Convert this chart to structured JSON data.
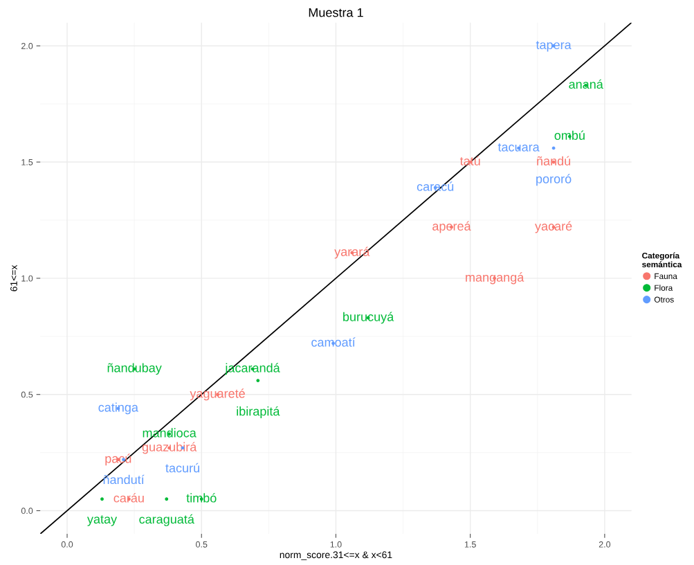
{
  "chart_data": {
    "type": "scatter",
    "title": "Muestra 1",
    "xlabel": "norm_score.31<=x & x<61",
    "ylabel": "61<=x",
    "legend_title": "Categoría\nsemántica",
    "legend": "right",
    "grid": true,
    "marker": "circle",
    "xlim": [
      -0.1,
      2.1
    ],
    "ylim": [
      -0.1,
      2.1
    ],
    "xticks": [
      {
        "value": 0,
        "label": "0.0"
      },
      {
        "value": 0.5,
        "label": "0.5"
      },
      {
        "value": 1,
        "label": "1.0"
      },
      {
        "value": 1.5,
        "label": "1.5"
      },
      {
        "value": 2,
        "label": "2.0"
      }
    ],
    "yticks": [
      {
        "value": 0,
        "label": "0.0"
      },
      {
        "value": 0.5,
        "label": "0.5"
      },
      {
        "value": 1,
        "label": "1.0"
      },
      {
        "value": 1.5,
        "label": "1.5"
      },
      {
        "value": 2,
        "label": "2.0"
      }
    ],
    "series": [
      {
        "type": "line",
        "marker": "none",
        "color": "#000000",
        "x": [
          -0.1,
          2.1
        ],
        "values": [
          -0.1,
          2.1
        ]
      },
      {
        "name": "Fauna",
        "color": "#f8766d",
        "x": [
          1.81,
          1.5,
          1.43,
          1.81,
          1.06,
          1.59,
          0.56,
          0.38,
          0.19,
          0.23
        ],
        "values": [
          1.5,
          1.5,
          1.22,
          1.22,
          1.11,
          1.0,
          0.5,
          0.27,
          0.22,
          0.05
        ],
        "value_labels": [
          "ñandú",
          "tatú",
          "apereá",
          "yacaré",
          "yarará",
          "mangangá",
          "yaguareté",
          "guazubirá",
          "pacú",
          "caráu"
        ]
      },
      {
        "name": "Flora",
        "color": "#00ba38",
        "x": [
          1.93,
          1.87,
          1.12,
          0.25,
          0.69,
          0.71,
          0.38,
          0.13,
          0.37,
          0.5
        ],
        "values": [
          1.83,
          1.61,
          0.83,
          0.61,
          0.61,
          0.56,
          0.33,
          0.05,
          0.05,
          0.05
        ],
        "value_labels": [
          "ananá",
          "ombú",
          "burucuyá",
          "ñandubay",
          "jacarandá",
          "ibirapitá",
          "mandioca",
          "yatay",
          "caraguatá",
          "timbó"
        ]
      },
      {
        "name": "Otros",
        "color": "#619cff",
        "x": [
          1.81,
          1.68,
          1.81,
          1.37,
          0.99,
          0.19,
          0.43,
          0.21
        ],
        "values": [
          2.0,
          1.56,
          1.56,
          1.39,
          0.72,
          0.44,
          0.27,
          0.22
        ],
        "value_labels": [
          "tapera",
          "tacuara",
          "pororó",
          "caracú",
          "camoatí",
          "catinga",
          "tacurú",
          "ñandutí"
        ]
      }
    ]
  }
}
